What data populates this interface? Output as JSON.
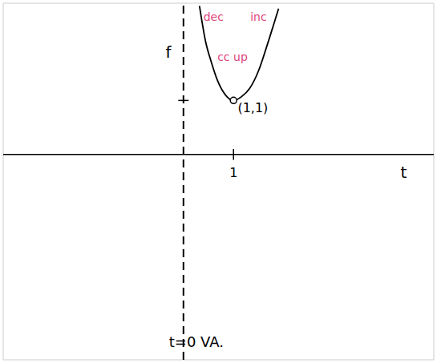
{
  "chart_data": {
    "type": "line",
    "x_label": "t",
    "y_label": "f",
    "x": [
      0.32,
      0.44,
      0.56,
      0.68,
      0.84,
      1,
      1.16,
      1.32,
      1.5,
      1.65,
      1.8,
      1.9
    ],
    "values": [
      2.75,
      2.1,
      1.7,
      1.37,
      1.1,
      1,
      1.07,
      1.22,
      1.55,
      1.96,
      2.4,
      2.7
    ],
    "color": "#000000",
    "line_style": "solid",
    "points": [
      {
        "x": 1,
        "y": 1,
        "label": "(1,1)"
      }
    ],
    "asymptote": {
      "x": 0,
      "label": "t=0 VA.",
      "line_style": "dashed"
    },
    "annotations": [
      {
        "text": "dec",
        "color": "#e0457b"
      },
      {
        "text": "inc",
        "color": "#e0457b"
      },
      {
        "text": "cc up",
        "color": "#e0457b"
      }
    ],
    "xlim": [
      -3.6,
      5.0
    ],
    "ylim": [
      -3.8,
      2.8
    ],
    "xticks": [
      1
    ],
    "yticks": [
      1
    ],
    "tick_labels": "x",
    "grid": false
  }
}
